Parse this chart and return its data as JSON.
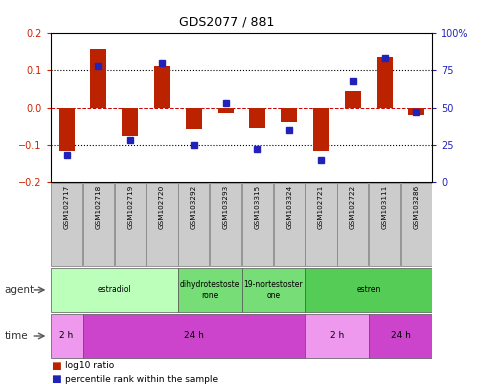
{
  "title": "GDS2077 / 881",
  "samples": [
    "GSM102717",
    "GSM102718",
    "GSM102719",
    "GSM102720",
    "GSM103292",
    "GSM103293",
    "GSM103315",
    "GSM103324",
    "GSM102721",
    "GSM102722",
    "GSM103111",
    "GSM103286"
  ],
  "log10_ratio": [
    -0.115,
    0.155,
    -0.075,
    0.112,
    -0.058,
    -0.015,
    -0.055,
    -0.04,
    -0.115,
    0.045,
    0.135,
    -0.02
  ],
  "percentile": [
    18,
    78,
    28,
    80,
    25,
    53,
    22,
    35,
    15,
    68,
    83,
    47
  ],
  "bar_color": "#bb2200",
  "dot_color": "#2222bb",
  "ylim": [
    -0.2,
    0.2
  ],
  "y2lim": [
    0,
    100
  ],
  "yticks": [
    -0.2,
    -0.1,
    0.0,
    0.1,
    0.2
  ],
  "y2ticks": [
    0,
    25,
    50,
    75,
    100
  ],
  "hlines_dotted": [
    0.1,
    -0.1
  ],
  "hline_dashed": 0.0,
  "agent_groups": [
    {
      "label": "estradiol",
      "start": 0,
      "end": 4,
      "color": "#bbffbb"
    },
    {
      "label": "dihydrotestoste\nrone",
      "start": 4,
      "end": 6,
      "color": "#77dd77"
    },
    {
      "label": "19-nortestoster\none",
      "start": 6,
      "end": 8,
      "color": "#77dd77"
    },
    {
      "label": "estren",
      "start": 8,
      "end": 12,
      "color": "#55cc55"
    }
  ],
  "time_groups": [
    {
      "label": "2 h",
      "start": 0,
      "end": 1,
      "color": "#ee99ee"
    },
    {
      "label": "24 h",
      "start": 1,
      "end": 8,
      "color": "#cc44cc"
    },
    {
      "label": "2 h",
      "start": 8,
      "end": 10,
      "color": "#ee99ee"
    },
    {
      "label": "24 h",
      "start": 10,
      "end": 12,
      "color": "#cc44cc"
    }
  ],
  "bg_color": "#ffffff",
  "label_box_color": "#cccccc",
  "label_box_edge": "#888888"
}
